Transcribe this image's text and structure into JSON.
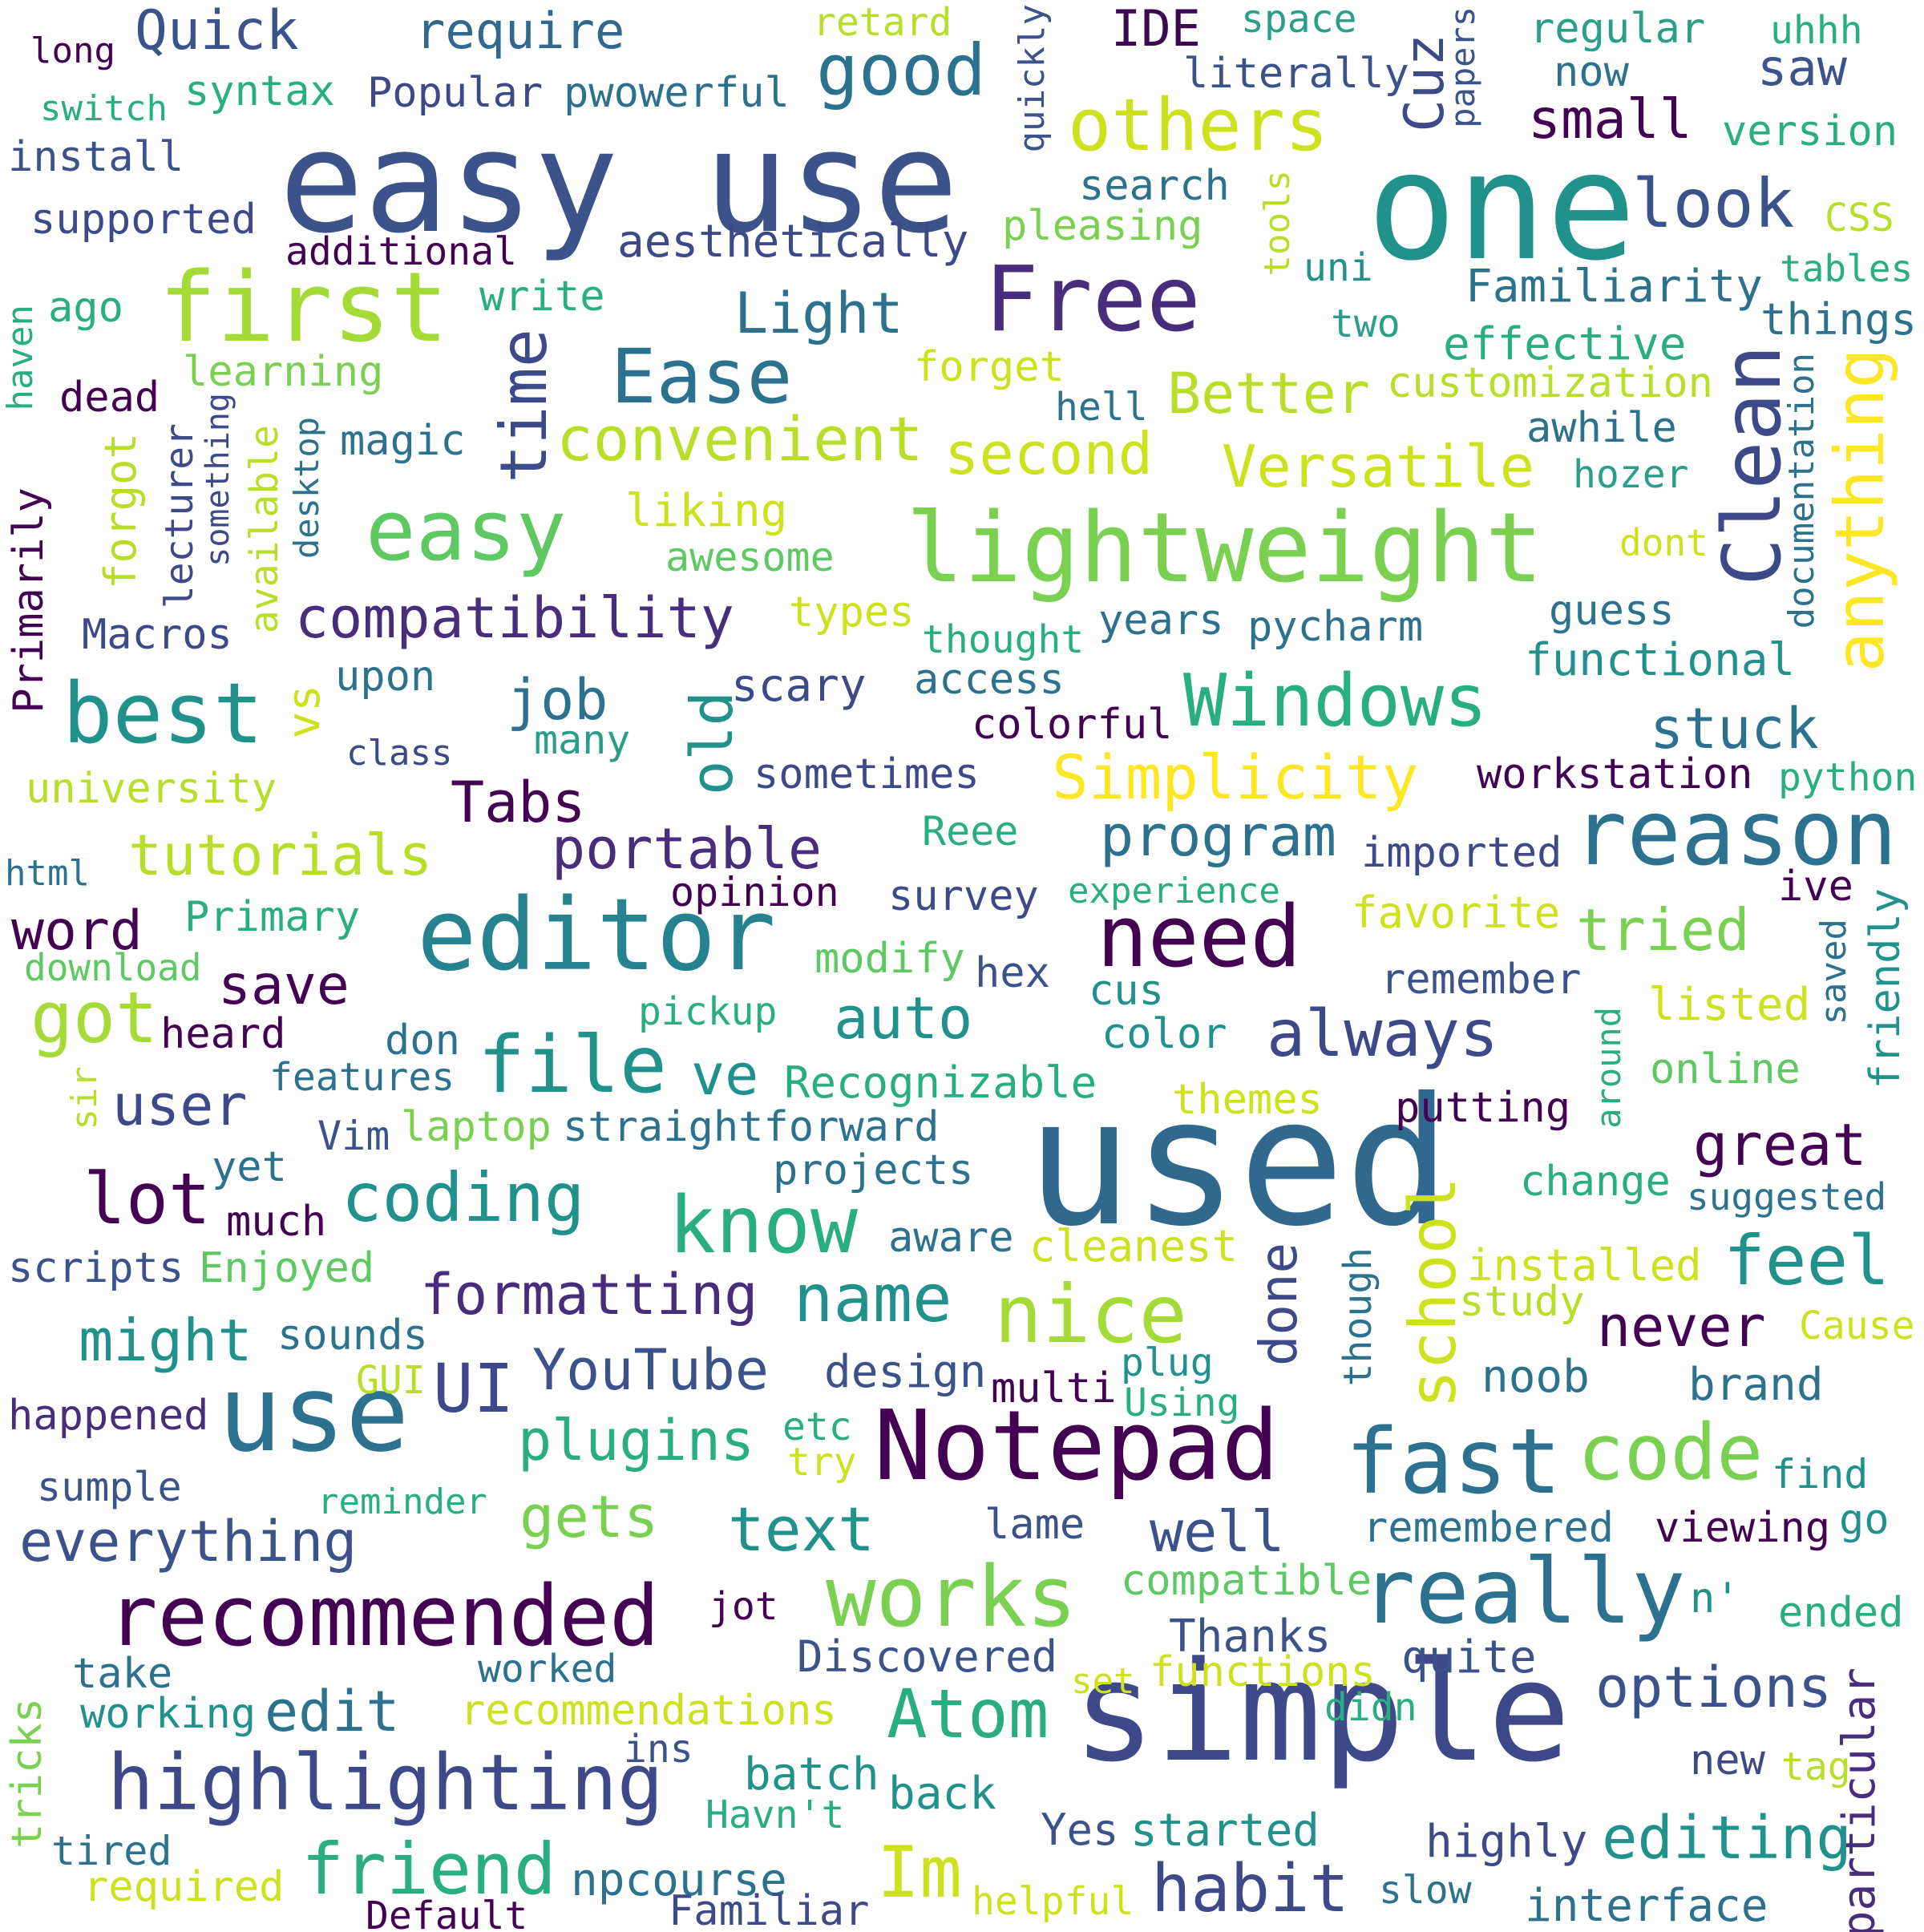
{
  "palette": {
    "dark_purple": "#440154",
    "purple": "#472d7b",
    "indigo": "#3b528b",
    "blue": "#2c728e",
    "teal": "#21918c",
    "green_teal": "#28ae80",
    "green": "#5ec962",
    "lime": "#addc30",
    "yellow": "#fde725",
    "background": "#ffffff"
  },
  "words": [
    "easy use",
    "one",
    "used",
    "simple",
    "lightweight",
    "editor",
    "Notepad",
    "first",
    "use",
    "Free",
    "others",
    "good",
    "Quick",
    "require",
    "IDE",
    "space",
    "retard",
    "quickly",
    "papers",
    "regular",
    "uhhh",
    "long",
    "switch",
    "syntax",
    "Popular",
    "pwowerful",
    "literally",
    "now",
    "saw",
    "install",
    "supported",
    "additional",
    "aesthetically",
    "search",
    "pleasing",
    "tools",
    "uni",
    "look",
    "CSS",
    "version",
    "small",
    "Cuz",
    "tables",
    "two",
    "Familiarity",
    "things",
    "effective",
    "customization",
    "Light",
    "write",
    "ago",
    "learning",
    "forget",
    "dead",
    "hell",
    "awhile",
    "hozer",
    "haven",
    "Ease",
    "Better",
    "Clean",
    "anything",
    "documentation",
    "time",
    "convenient",
    "second",
    "Versatile",
    "magic",
    "easy",
    "liking",
    "dont",
    "awesome",
    "lecturer",
    "something",
    "available",
    "desktop",
    "forgot",
    "Primarily",
    "guess",
    "types",
    "thought",
    "years",
    "pycharm",
    "compatibility",
    "Macros",
    "functional",
    "best",
    "vs",
    "upon",
    "job",
    "many",
    "scary",
    "access",
    "colorful",
    "Windows",
    "old",
    "stuck",
    "class",
    "university",
    "sometimes",
    "Simplicity",
    "workstation",
    "python",
    "Tabs",
    "reason",
    "Reee",
    "imported",
    "program",
    "tutorials",
    "portable",
    "html",
    "opinion",
    "survey",
    "experience",
    "ive",
    "Primary",
    "word",
    "favorite",
    "tried",
    "modify",
    "need",
    "hex",
    "download",
    "save",
    "remember",
    "got",
    "listed",
    "saved",
    "friendly",
    "heard",
    "don",
    "pickup",
    "auto",
    "cus",
    "color",
    "always",
    "file",
    "ve",
    "features",
    "Recognizable",
    "themes",
    "online",
    "around",
    "putting",
    "sir",
    "user",
    "Vim",
    "laptop",
    "straightforward",
    "great",
    "yet",
    "projects",
    "lot",
    "coding",
    "know",
    "much",
    "change",
    "suggested",
    "school",
    "aware",
    "cleanest",
    "scripts",
    "Enjoyed",
    "feel",
    "done",
    "installed",
    "formatting",
    "name",
    "nice",
    "might",
    "sounds",
    "study",
    "never",
    "Cause",
    "though",
    "YouTube",
    "design",
    "GUI",
    "plug",
    "multi",
    "noob",
    "brand",
    "UI",
    "Using",
    "happened",
    "etc",
    "plugins",
    "try",
    "code",
    "fast",
    "find",
    "sumple",
    "reminder",
    "gets",
    "text",
    "lame",
    "well",
    "everything",
    "remembered",
    "viewing",
    "go",
    "compatible",
    "works",
    "really",
    "recommended",
    "jot",
    "n'",
    "ended",
    "Thanks",
    "quite",
    "Discovered",
    "take",
    "worked",
    "set",
    "functions",
    "options",
    "working",
    "edit",
    "recommendations",
    "didn",
    "Atom",
    "particular",
    "tricks",
    "highlighting",
    "ins",
    "batch",
    "new",
    "tag",
    "back",
    "Havn't",
    "Yes",
    "started",
    "highly",
    "editing",
    "tired",
    "friend",
    "Im",
    "required",
    "npcourse",
    "helpful",
    "slow",
    "habit",
    "Default",
    "Familiar",
    "interface"
  ]
}
